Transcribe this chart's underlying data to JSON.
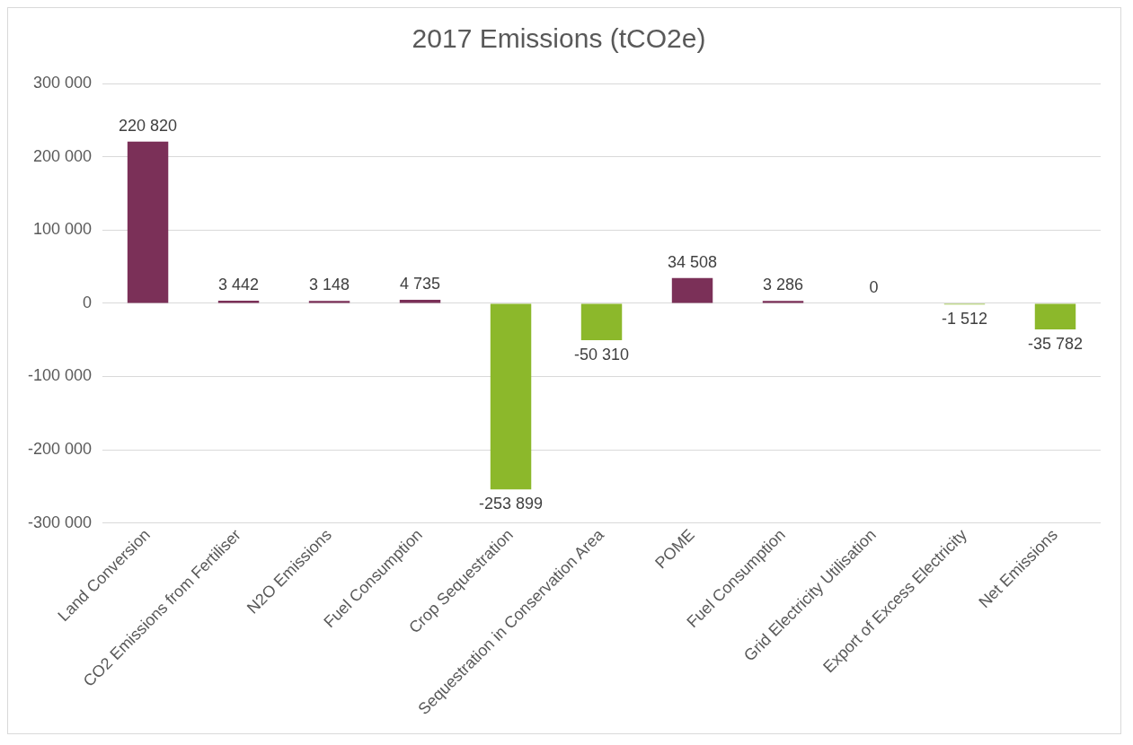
{
  "chart_data": {
    "type": "bar",
    "title": "2017 Emissions (tCO2e)",
    "categories": [
      "Land Conversion",
      "CO2 Emissions from Fertiliser",
      "N2O Emissions",
      "Fuel Consumption",
      "Crop Sequestration",
      "Sequestration in Conservation Area",
      "POME",
      "Fuel Consumption",
      "Grid Electricity Utilisation",
      "Export of Excess Electricity",
      "Net Emissions"
    ],
    "values": [
      220820,
      3442,
      3148,
      4735,
      -253899,
      -50310,
      34508,
      3286,
      0,
      -1512,
      -35782
    ],
    "value_labels": [
      "220 820",
      "3 442",
      "3 148",
      "4 735",
      "-253 899",
      "-50 310",
      "34 508",
      "3 286",
      "0",
      "-1 512",
      "-35 782"
    ],
    "colors": [
      "#7b3058",
      "#7b3058",
      "#7b3058",
      "#7b3058",
      "#8cb82b",
      "#8cb82b",
      "#7b3058",
      "#7b3058",
      "#7b3058",
      "#8cb82b",
      "#8cb82b"
    ],
    "ylim": [
      -300000,
      300000
    ],
    "yticks": [
      {
        "value": -300000,
        "label": "-300 000"
      },
      {
        "value": -200000,
        "label": "-200 000"
      },
      {
        "value": -100000,
        "label": "-100 000"
      },
      {
        "value": 0,
        "label": "0"
      },
      {
        "value": 100000,
        "label": "100 000"
      },
      {
        "value": 200000,
        "label": "200 000"
      },
      {
        "value": 300000,
        "label": "300 000"
      }
    ],
    "grid": "y",
    "legend": false
  }
}
